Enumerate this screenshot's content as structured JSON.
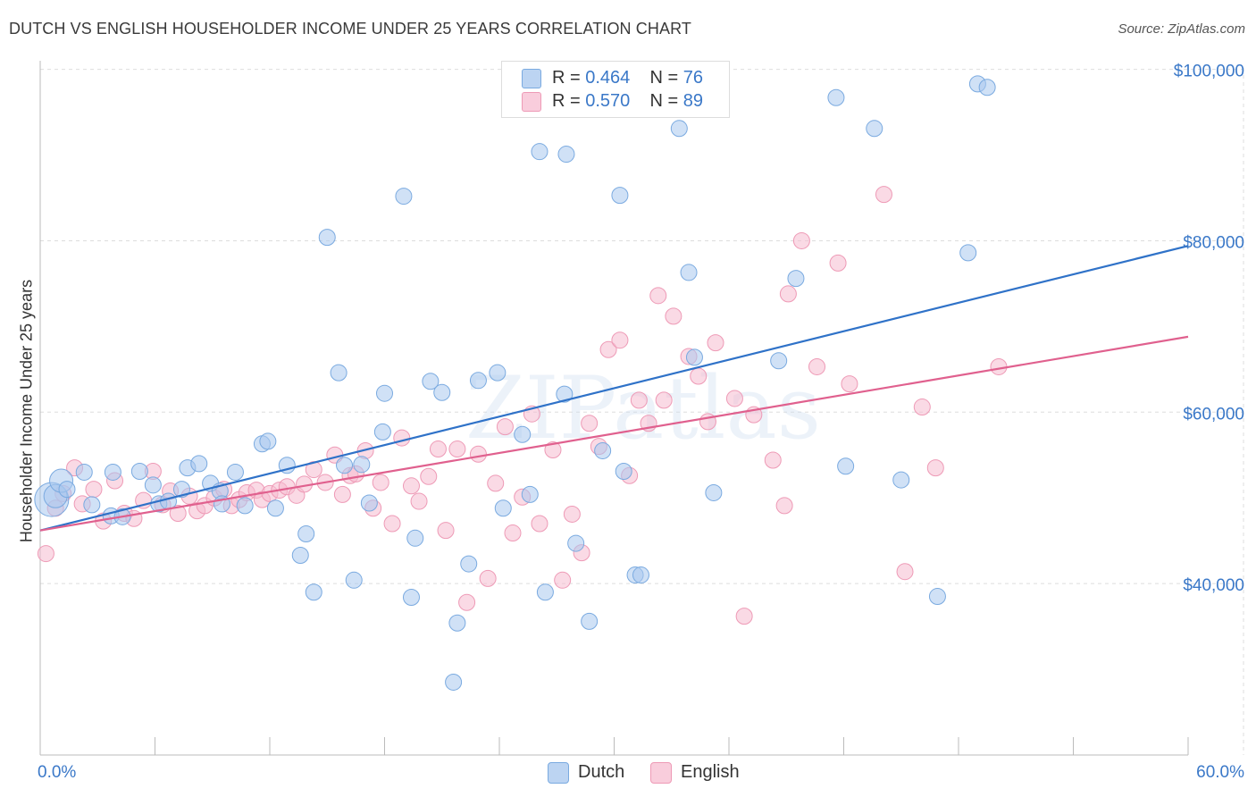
{
  "title": "DUTCH VS ENGLISH HOUSEHOLDER INCOME UNDER 25 YEARS CORRELATION CHART",
  "source": "Source: ZipAtlas.com",
  "watermark": "ZIPatlas",
  "legend_top": {
    "rows": [
      {
        "r_label": "R = ",
        "r_value": "0.464",
        "n_label": "N = ",
        "n_value": "76"
      },
      {
        "r_label": "R = ",
        "r_value": "0.570",
        "n_label": "N = ",
        "n_value": "89"
      }
    ]
  },
  "legend_bottom": [
    "Dutch",
    "English"
  ],
  "colors": {
    "dutch_fill": "#a9c8ef",
    "dutch_stroke": "#7aaae0",
    "dutch_line": "#2f72c8",
    "english_fill": "#f6bcd0",
    "english_stroke": "#ee9ab6",
    "english_line": "#e0608e",
    "tick_label": "#3a78c8",
    "grid": "#dddddd"
  },
  "chart_data": {
    "type": "scatter",
    "title": "DUTCH VS ENGLISH HOUSEHOLDER INCOME UNDER 25 YEARS CORRELATION CHART",
    "xlabel": "",
    "ylabel": "Householder Income Under 25 years",
    "xlim": [
      0,
      60
    ],
    "ylim": [
      20000,
      101000
    ],
    "x_tick_labels": [
      "0.0%",
      "60.0%"
    ],
    "y_ticks": [
      40000,
      60000,
      80000,
      100000
    ],
    "y_tick_labels": [
      "$40,000",
      "$60,000",
      "$80,000",
      "$100,000"
    ],
    "grid": true,
    "legend_position": "top-center",
    "series": [
      {
        "name": "Dutch",
        "r": 0.464,
        "n": 76,
        "trend": {
          "x": [
            0,
            60
          ],
          "y": [
            46200,
            79400
          ]
        },
        "points": [
          [
            0.6,
            49800,
            3
          ],
          [
            0.8,
            50200,
            2
          ],
          [
            1.1,
            52000,
            2
          ],
          [
            1.4,
            51000,
            1
          ],
          [
            2.3,
            53000,
            1
          ],
          [
            2.7,
            49200,
            1
          ],
          [
            3.7,
            47900,
            1
          ],
          [
            3.8,
            53000,
            1
          ],
          [
            4.3,
            47800,
            1
          ],
          [
            5.2,
            53100,
            1
          ],
          [
            5.9,
            51500,
            1
          ],
          [
            6.2,
            49300,
            1
          ],
          [
            6.7,
            49600,
            1
          ],
          [
            7.4,
            51000,
            1
          ],
          [
            7.7,
            53500,
            1
          ],
          [
            8.3,
            54000,
            1
          ],
          [
            8.9,
            51700,
            1
          ],
          [
            9.4,
            50800,
            1
          ],
          [
            9.5,
            49300,
            1
          ],
          [
            10.2,
            53000,
            1
          ],
          [
            10.7,
            49100,
            1
          ],
          [
            11.6,
            56300,
            1
          ],
          [
            11.9,
            56600,
            1
          ],
          [
            12.3,
            48800,
            1
          ],
          [
            12.9,
            53800,
            1
          ],
          [
            13.6,
            43300,
            1
          ],
          [
            13.9,
            45800,
            1
          ],
          [
            14.3,
            39000,
            1
          ],
          [
            15.0,
            80400,
            1
          ],
          [
            15.6,
            64600,
            1
          ],
          [
            15.9,
            53800,
            1
          ],
          [
            16.4,
            40400,
            1
          ],
          [
            16.8,
            53900,
            1
          ],
          [
            17.2,
            49400,
            1
          ],
          [
            17.9,
            57700,
            1
          ],
          [
            18.0,
            62200,
            1
          ],
          [
            19.0,
            85200,
            1
          ],
          [
            19.4,
            38400,
            1
          ],
          [
            19.6,
            45300,
            1
          ],
          [
            20.4,
            63600,
            1
          ],
          [
            21.0,
            62300,
            1
          ],
          [
            21.8,
            35400,
            1
          ],
          [
            21.6,
            28500,
            1
          ],
          [
            22.4,
            42300,
            1
          ],
          [
            22.9,
            63700,
            1
          ],
          [
            23.9,
            64600,
            1
          ],
          [
            24.2,
            48800,
            1
          ],
          [
            25.2,
            57400,
            1
          ],
          [
            25.6,
            50400,
            1
          ],
          [
            26.1,
            90400,
            1
          ],
          [
            26.4,
            39000,
            1
          ],
          [
            27.5,
            90100,
            1
          ],
          [
            27.4,
            62100,
            1
          ],
          [
            28.0,
            44700,
            1
          ],
          [
            28.7,
            35600,
            1
          ],
          [
            29.4,
            55500,
            1
          ],
          [
            30.3,
            85300,
            1
          ],
          [
            30.5,
            53100,
            1
          ],
          [
            31.1,
            41000,
            1
          ],
          [
            31.4,
            41000,
            1
          ],
          [
            33.4,
            93100,
            1
          ],
          [
            33.9,
            76300,
            1
          ],
          [
            34.2,
            66400,
            1
          ],
          [
            35.2,
            50600,
            1
          ],
          [
            38.6,
            66000,
            1
          ],
          [
            39.5,
            75600,
            1
          ],
          [
            41.6,
            96700,
            1
          ],
          [
            42.1,
            53700,
            1
          ],
          [
            43.6,
            93100,
            1
          ],
          [
            45.0,
            52100,
            1
          ],
          [
            46.9,
            38500,
            1
          ],
          [
            48.5,
            78600,
            1
          ],
          [
            49.0,
            98300,
            1
          ],
          [
            49.5,
            97900,
            1
          ]
        ]
      },
      {
        "name": "English",
        "r": 0.57,
        "n": 89,
        "trend": {
          "x": [
            0,
            60
          ],
          "y": [
            46200,
            68800
          ]
        },
        "points": [
          [
            0.3,
            43500,
            1
          ],
          [
            0.8,
            48800,
            1
          ],
          [
            1.2,
            50500,
            1
          ],
          [
            1.8,
            53500,
            1
          ],
          [
            2.2,
            49300,
            1
          ],
          [
            2.8,
            51000,
            1
          ],
          [
            3.3,
            47300,
            1
          ],
          [
            3.9,
            52000,
            1
          ],
          [
            4.4,
            48200,
            1
          ],
          [
            4.9,
            47600,
            1
          ],
          [
            5.4,
            49700,
            1
          ],
          [
            5.9,
            53100,
            1
          ],
          [
            6.4,
            49200,
            1
          ],
          [
            6.8,
            50800,
            1
          ],
          [
            7.2,
            48200,
            1
          ],
          [
            7.8,
            50200,
            1
          ],
          [
            8.2,
            48500,
            1
          ],
          [
            8.6,
            49100,
            1
          ],
          [
            9.1,
            50000,
            1
          ],
          [
            9.6,
            51000,
            1
          ],
          [
            10.0,
            49100,
            1
          ],
          [
            10.4,
            49800,
            1
          ],
          [
            10.8,
            50600,
            1
          ],
          [
            11.3,
            50900,
            1
          ],
          [
            11.6,
            49800,
            1
          ],
          [
            12.0,
            50500,
            1
          ],
          [
            12.5,
            50900,
            1
          ],
          [
            12.9,
            51300,
            1
          ],
          [
            13.4,
            50300,
            1
          ],
          [
            13.8,
            51600,
            1
          ],
          [
            14.3,
            53300,
            1
          ],
          [
            14.9,
            51800,
            1
          ],
          [
            15.4,
            55000,
            1
          ],
          [
            15.8,
            50400,
            1
          ],
          [
            16.2,
            52600,
            1
          ],
          [
            16.5,
            52800,
            1
          ],
          [
            17.0,
            55500,
            1
          ],
          [
            17.4,
            48800,
            1
          ],
          [
            17.8,
            51800,
            1
          ],
          [
            18.4,
            47000,
            1
          ],
          [
            18.9,
            57000,
            1
          ],
          [
            19.4,
            51400,
            1
          ],
          [
            19.8,
            49600,
            1
          ],
          [
            20.3,
            52500,
            1
          ],
          [
            20.8,
            55700,
            1
          ],
          [
            21.2,
            46200,
            1
          ],
          [
            21.8,
            55700,
            1
          ],
          [
            22.3,
            37800,
            1
          ],
          [
            22.9,
            55100,
            1
          ],
          [
            23.4,
            40600,
            1
          ],
          [
            23.8,
            51700,
            1
          ],
          [
            24.3,
            58300,
            1
          ],
          [
            24.7,
            45900,
            1
          ],
          [
            25.2,
            50100,
            1
          ],
          [
            25.7,
            59800,
            1
          ],
          [
            26.1,
            47000,
            1
          ],
          [
            26.8,
            55600,
            1
          ],
          [
            27.3,
            40400,
            1
          ],
          [
            27.8,
            48100,
            1
          ],
          [
            28.3,
            43600,
            1
          ],
          [
            28.7,
            58700,
            1
          ],
          [
            29.2,
            56000,
            1
          ],
          [
            29.7,
            67300,
            1
          ],
          [
            30.3,
            68400,
            1
          ],
          [
            30.8,
            52600,
            1
          ],
          [
            31.3,
            61400,
            1
          ],
          [
            31.8,
            58700,
            1
          ],
          [
            32.3,
            73600,
            1
          ],
          [
            32.6,
            61400,
            1
          ],
          [
            33.1,
            71200,
            1
          ],
          [
            33.9,
            66500,
            1
          ],
          [
            34.4,
            64200,
            1
          ],
          [
            34.9,
            58900,
            1
          ],
          [
            35.3,
            68100,
            1
          ],
          [
            36.3,
            61600,
            1
          ],
          [
            36.8,
            36200,
            1
          ],
          [
            37.3,
            59700,
            1
          ],
          [
            38.3,
            54400,
            1
          ],
          [
            38.9,
            49100,
            1
          ],
          [
            39.8,
            80000,
            1
          ],
          [
            40.6,
            65300,
            1
          ],
          [
            41.7,
            77400,
            1
          ],
          [
            42.3,
            63300,
            1
          ],
          [
            44.1,
            85400,
            1
          ],
          [
            45.2,
            41400,
            1
          ],
          [
            46.1,
            60600,
            1
          ],
          [
            46.8,
            53500,
            1
          ],
          [
            50.1,
            65300,
            1
          ],
          [
            39.1,
            73800,
            1
          ]
        ]
      }
    ]
  }
}
